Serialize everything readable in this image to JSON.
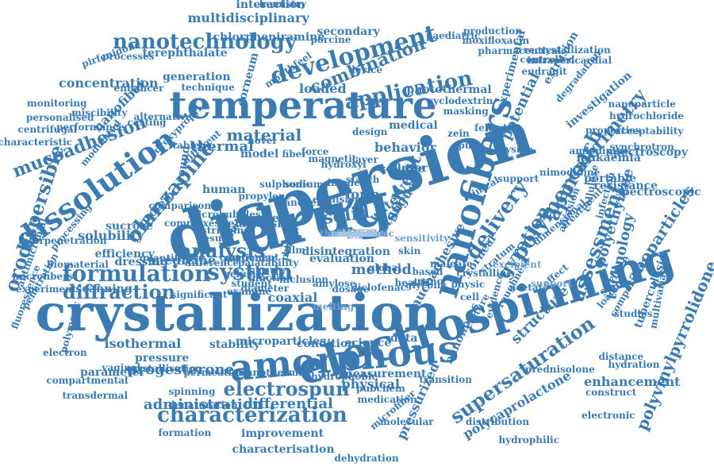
{
  "colors": {
    "primary": "#3b7bb4",
    "light": "#6f9fcc",
    "pale": "#a9c6e2"
  },
  "words": [
    {
      "text": "crystallization",
      "c": "primary"
    },
    {
      "text": "dispersion",
      "c": "primary"
    },
    {
      "text": "drug",
      "c": "primary"
    },
    {
      "text": "electrospinning",
      "c": "primary"
    },
    {
      "text": "nanofibers",
      "c": "primary"
    },
    {
      "text": "temperature",
      "c": "primary"
    },
    {
      "text": "amorphous",
      "c": "primary"
    },
    {
      "text": "dissolution",
      "c": "primary"
    },
    {
      "text": "system",
      "c": "primary"
    },
    {
      "text": "development",
      "c": "primary"
    },
    {
      "text": "formulation",
      "c": "primary"
    },
    {
      "text": "characterization",
      "c": "primary"
    },
    {
      "text": "nanotechnology",
      "c": "primary"
    },
    {
      "text": "application",
      "c": "primary"
    },
    {
      "text": "delivery",
      "c": "primary"
    },
    {
      "text": "polymer",
      "c": "primary"
    },
    {
      "text": "polyvinylpyrrolidone",
      "c": "primary"
    },
    {
      "text": "approach",
      "c": "primary"
    },
    {
      "text": "assessment",
      "c": "primary"
    },
    {
      "text": "olanzapine",
      "c": "primary"
    },
    {
      "text": "mucoadhesion",
      "c": "primary"
    },
    {
      "text": "orodispersible",
      "c": "primary"
    },
    {
      "text": "analysis",
      "c": "primary"
    },
    {
      "text": "electrospun",
      "c": "primary"
    },
    {
      "text": "supersaturation",
      "c": "primary"
    },
    {
      "text": "combination",
      "c": "primary"
    },
    {
      "text": "gyration",
      "c": "primary"
    },
    {
      "text": "calorimetry",
      "c": "primary"
    },
    {
      "text": "nanoparticles",
      "c": "primary"
    },
    {
      "text": "material",
      "c": "primary"
    },
    {
      "text": "solid",
      "c": "primary"
    },
    {
      "text": "solvent",
      "c": "primary"
    },
    {
      "text": "diffraction",
      "c": "primary"
    },
    {
      "text": "medicine",
      "c": "primary"
    },
    {
      "text": "study",
      "c": "primary"
    },
    {
      "text": "multidisciplinary",
      "c": "primary"
    },
    {
      "text": "administration",
      "c": "primary"
    },
    {
      "text": "differential",
      "c": "primary"
    },
    {
      "text": "progesterone",
      "c": "primary"
    },
    {
      "text": "structure",
      "c": "primary"
    },
    {
      "text": "polyethylene",
      "c": "primary"
    },
    {
      "text": "technology",
      "c": "primary"
    },
    {
      "text": "tuberculosis",
      "c": "primary"
    },
    {
      "text": "concentration",
      "c": "primary"
    },
    {
      "text": "generation",
      "c": "primary"
    },
    {
      "text": "corneum",
      "c": "primary"
    },
    {
      "text": "loaded",
      "c": "primary"
    },
    {
      "text": "thermal",
      "c": "primary"
    },
    {
      "text": "form",
      "c": "primary"
    },
    {
      "text": "solubility",
      "c": "primary"
    },
    {
      "text": "method",
      "c": "primary"
    },
    {
      "text": "coaxial",
      "c": "primary"
    },
    {
      "text": "isothermal",
      "c": "primary"
    },
    {
      "text": "science",
      "c": "primary"
    },
    {
      "text": "physical",
      "c": "primary"
    },
    {
      "text": "improvement",
      "c": "primary"
    },
    {
      "text": "characterisation",
      "c": "primary"
    },
    {
      "text": "pressurized",
      "c": "primary"
    },
    {
      "text": "polycaprolactone",
      "c": "primary"
    },
    {
      "text": "enhancement",
      "c": "primary"
    },
    {
      "text": "leukaemia",
      "c": "primary"
    },
    {
      "text": "portable",
      "c": "primary"
    },
    {
      "text": "resistance",
      "c": "primary"
    },
    {
      "text": "spectroscopic",
      "c": "primary"
    },
    {
      "text": "spectroscopy",
      "c": "primary"
    },
    {
      "text": "properties",
      "c": "primary"
    },
    {
      "text": "investigation",
      "c": "primary"
    },
    {
      "text": "potential",
      "c": "primary"
    },
    {
      "text": "experimental",
      "c": "primary"
    },
    {
      "text": "extrusion",
      "c": "primary"
    },
    {
      "text": "eudragit",
      "c": "primary"
    },
    {
      "text": "controlled",
      "c": "primary"
    },
    {
      "text": "moxifloxacin",
      "c": "primary"
    },
    {
      "text": "paediatric",
      "c": "primary"
    },
    {
      "text": "pharmaceutical",
      "c": "primary"
    },
    {
      "text": "secondary",
      "c": "primary"
    },
    {
      "text": "interaction",
      "c": "primary"
    },
    {
      "text": "chlorpheniramine",
      "c": "primary"
    },
    {
      "text": "terephthalate",
      "c": "primary"
    },
    {
      "text": "technique",
      "c": "primary"
    },
    {
      "text": "monitoring",
      "c": "primary"
    },
    {
      "text": "nanofiber",
      "c": "primary"
    },
    {
      "text": "personalised",
      "c": "primary"
    },
    {
      "text": "centrifugal",
      "c": "primary"
    },
    {
      "text": "characteristic",
      "c": "primary"
    },
    {
      "text": "photothermal",
      "c": "primary"
    },
    {
      "text": "cyclodextrin",
      "c": "primary"
    },
    {
      "text": "masking",
      "c": "primary"
    },
    {
      "text": "medical",
      "c": "primary"
    },
    {
      "text": "behavior",
      "c": "primary"
    },
    {
      "text": "soluble",
      "c": "primary"
    },
    {
      "text": "tongue",
      "c": "primary"
    },
    {
      "text": "water",
      "c": "primary"
    },
    {
      "text": "laser",
      "c": "primary"
    },
    {
      "text": "fiber",
      "c": "primary"
    },
    {
      "text": "model",
      "c": "primary"
    },
    {
      "text": "novel",
      "c": "primary"
    },
    {
      "text": "wound",
      "c": "primary"
    },
    {
      "text": "human",
      "c": "primary"
    },
    {
      "text": "protein",
      "c": "primary"
    },
    {
      "text": "sucrose",
      "c": "primary"
    },
    {
      "text": "efficiency",
      "c": "primary"
    },
    {
      "text": "dressing",
      "c": "primary"
    },
    {
      "text": "scanning",
      "c": "primary"
    },
    {
      "text": "significant",
      "c": "primary"
    },
    {
      "text": "penetration",
      "c": "primary"
    },
    {
      "text": "stability",
      "c": "primary"
    },
    {
      "text": "microparticles",
      "c": "primary"
    },
    {
      "text": "condition",
      "c": "primary"
    },
    {
      "text": "pressure",
      "c": "primary"
    },
    {
      "text": "vaginal",
      "c": "primary"
    },
    {
      "text": "parameter",
      "c": "primary"
    },
    {
      "text": "crystallisation",
      "c": "primary"
    },
    {
      "text": "transdermal",
      "c": "primary"
    },
    {
      "text": "spinning",
      "c": "primary"
    },
    {
      "text": "measurement",
      "c": "primary"
    },
    {
      "text": "pubchem",
      "c": "primary"
    },
    {
      "text": "transition",
      "c": "primary"
    },
    {
      "text": "molecular",
      "c": "primary"
    },
    {
      "text": "microfiber",
      "c": "primary"
    },
    {
      "text": "mucoadhesive",
      "c": "primary"
    },
    {
      "text": "nanofibres",
      "c": "primary"
    },
    {
      "text": "corneal",
      "c": "primary"
    },
    {
      "text": "stratum",
      "c": "primary"
    },
    {
      "text": "surface",
      "c": "primary"
    },
    {
      "text": "effect",
      "c": "primary"
    },
    {
      "text": "treatment",
      "c": "primary"
    },
    {
      "text": "dimensional",
      "c": "primary"
    },
    {
      "text": "abrasion",
      "c": "primary"
    },
    {
      "text": "cellulose",
      "c": "primary"
    },
    {
      "text": "loading",
      "c": "primary"
    },
    {
      "text": "studies",
      "c": "primary"
    },
    {
      "text": "hydration",
      "c": "primary"
    },
    {
      "text": "multivariate",
      "c": "primary"
    },
    {
      "text": "prednisolone",
      "c": "primary"
    },
    {
      "text": "relationship",
      "c": "primary"
    },
    {
      "text": "evaluation",
      "c": "primary"
    },
    {
      "text": "disintegration",
      "c": "primary"
    },
    {
      "text": "melt",
      "c": "primary"
    },
    {
      "text": "film",
      "c": "primary"
    },
    {
      "text": "skin",
      "c": "primary"
    },
    {
      "text": "nano",
      "c": "primary"
    },
    {
      "text": "data",
      "c": "primary"
    },
    {
      "text": "result",
      "c": "primary"
    },
    {
      "text": "atomic",
      "c": "primary"
    },
    {
      "text": "diameter",
      "c": "primary"
    },
    {
      "text": "function",
      "c": "primary"
    },
    {
      "text": "tablet",
      "c": "primary"
    },
    {
      "text": "device",
      "c": "primary"
    },
    {
      "text": "force",
      "c": "primary"
    },
    {
      "text": "droxypropyl",
      "c": "primary"
    },
    {
      "text": "different",
      "c": "primary"
    },
    {
      "text": "casting",
      "c": "primary"
    },
    {
      "text": "chemistry",
      "c": "primary"
    },
    {
      "text": "porcine",
      "c": "primary"
    },
    {
      "text": "mouthfeel",
      "c": "primary"
    },
    {
      "text": "pirfenidone",
      "c": "primary"
    },
    {
      "text": "processes",
      "c": "primary"
    },
    {
      "text": "production",
      "c": "primary"
    },
    {
      "text": "recrystallization",
      "c": "primary"
    },
    {
      "text": "intrapericardial",
      "c": "primary"
    },
    {
      "text": "nanoparticle",
      "c": "primary"
    },
    {
      "text": "degradation",
      "c": "primary"
    },
    {
      "text": "acceptability",
      "c": "primary"
    },
    {
      "text": "hydrochloride",
      "c": "primary"
    },
    {
      "text": "synchrotron",
      "c": "primary"
    },
    {
      "text": "amlodipine",
      "c": "primary"
    },
    {
      "text": "nimodipine",
      "c": "primary"
    },
    {
      "text": "composition",
      "c": "primary"
    },
    {
      "text": "infection",
      "c": "primary"
    },
    {
      "text": "distance",
      "c": "primary"
    },
    {
      "text": "construct",
      "c": "primary"
    },
    {
      "text": "electronic",
      "c": "primary"
    },
    {
      "text": "distribution",
      "c": "primary"
    },
    {
      "text": "hydrophilic",
      "c": "primary"
    },
    {
      "text": "dehydration",
      "c": "primary"
    },
    {
      "text": "medication",
      "c": "primary"
    },
    {
      "text": "hydrophobic",
      "c": "primary"
    },
    {
      "text": "denaturation",
      "c": "primary"
    },
    {
      "text": "formation",
      "c": "primary"
    },
    {
      "text": "permeation",
      "c": "primary"
    },
    {
      "text": "nanothermal",
      "c": "primary"
    },
    {
      "text": "compartmental",
      "c": "primary"
    },
    {
      "text": "electron",
      "c": "primary"
    },
    {
      "text": "polymeric",
      "c": "primary"
    },
    {
      "text": "fluorescence",
      "c": "primary"
    },
    {
      "text": "experiment",
      "c": "primary"
    },
    {
      "text": "antimicrobial",
      "c": "primary"
    },
    {
      "text": "processing",
      "c": "primary"
    },
    {
      "text": "interpenetration",
      "c": "primary"
    },
    {
      "text": "microfibers",
      "c": "primary"
    },
    {
      "text": "modulated",
      "c": "primary"
    },
    {
      "text": "performance",
      "c": "primary"
    },
    {
      "text": "miscibility",
      "c": "primary"
    },
    {
      "text": "enhancer",
      "c": "primary"
    },
    {
      "text": "alternative",
      "c": "primary"
    },
    {
      "text": "biomaterial",
      "c": "primary"
    },
    {
      "text": "quantitative",
      "c": "primary"
    },
    {
      "text": "difference",
      "c": "primary"
    },
    {
      "text": "component",
      "c": "primary"
    },
    {
      "text": "stripping",
      "c": "primary"
    },
    {
      "text": "palatability",
      "c": "primary"
    },
    {
      "text": "particular",
      "c": "primary"
    },
    {
      "text": "inclusion",
      "c": "primary"
    },
    {
      "text": "amylose",
      "c": "primary"
    },
    {
      "text": "dosage",
      "c": "primary"
    },
    {
      "text": "diclofenac",
      "c": "primary"
    },
    {
      "text": "health",
      "c": "primary"
    },
    {
      "text": "global",
      "c": "primary"
    },
    {
      "text": "based",
      "c": "primary"
    },
    {
      "text": "maleate",
      "c": "primary"
    },
    {
      "text": "glycolic",
      "c": "primary"
    },
    {
      "text": "physic",
      "c": "primary"
    },
    {
      "text": "cell",
      "c": "primary"
    },
    {
      "text": "culture",
      "c": "primary"
    },
    {
      "text": "evidence",
      "c": "primary"
    },
    {
      "text": "roughness",
      "c": "primary"
    },
    {
      "text": "crystalline",
      "c": "primary"
    },
    {
      "text": "acetate",
      "c": "primary"
    },
    {
      "text": "clinical",
      "c": "primary"
    },
    {
      "text": "sodium",
      "c": "primary"
    },
    {
      "text": "nanogels",
      "c": "primary"
    },
    {
      "text": "magnetic",
      "c": "primary"
    },
    {
      "text": "emulsion",
      "c": "primary"
    },
    {
      "text": "imode",
      "c": "primary"
    },
    {
      "text": "starch",
      "c": "primary"
    },
    {
      "text": "design",
      "c": "primary"
    },
    {
      "text": "layer",
      "c": "primary"
    },
    {
      "text": "panel",
      "c": "primary"
    },
    {
      "text": "kinetic",
      "c": "primary"
    },
    {
      "text": "examine",
      "c": "primary"
    },
    {
      "text": "student",
      "c": "primary"
    },
    {
      "text": "gelucire",
      "c": "primary"
    },
    {
      "text": "propylene",
      "c": "primary"
    },
    {
      "text": "complexes",
      "c": "primary"
    },
    {
      "text": "comparison",
      "c": "primary"
    },
    {
      "text": "microbubbles",
      "c": "primary"
    },
    {
      "text": "sulphonic",
      "c": "primary"
    },
    {
      "text": "hydroxyl",
      "c": "primary"
    },
    {
      "text": "pure",
      "c": "primary"
    },
    {
      "text": "zein",
      "c": "primary"
    },
    {
      "text": "feline",
      "c": "primary"
    },
    {
      "text": "lysine",
      "c": "primary"
    },
    {
      "text": "support",
      "c": "primary"
    },
    {
      "text": "support",
      "c": "light"
    },
    {
      "text": "excipient",
      "c": "light"
    },
    {
      "text": "melting",
      "c": "light"
    },
    {
      "text": "sensitivity",
      "c": "light"
    },
    {
      "text": "hanson",
      "c": "light"
    },
    {
      "text": "ethanol",
      "c": "light"
    },
    {
      "text": "anhydrous",
      "c": "light"
    },
    {
      "text": "carrier",
      "c": "light"
    },
    {
      "text": "solution",
      "c": "light"
    },
    {
      "text": "thermoplastic",
      "c": "light"
    },
    {
      "text": "thickness",
      "c": "light"
    },
    {
      "text": "mechanism",
      "c": "light"
    },
    {
      "text": "ionic",
      "c": "light"
    },
    {
      "text": "capacity",
      "c": "light"
    },
    {
      "text": "tensile",
      "c": "light"
    },
    {
      "text": "uniform",
      "c": "light"
    },
    {
      "text": "metabolic",
      "c": "pale"
    },
    {
      "text": "sample",
      "c": "pale"
    },
    {
      "text": "enzyme",
      "c": "pale"
    },
    {
      "text": "ratio",
      "c": "pale"
    },
    {
      "text": "visual",
      "c": "pale"
    },
    {
      "text": "crystal",
      "c": "pale"
    },
    {
      "text": "batch",
      "c": "pale"
    },
    {
      "text": "agent",
      "c": "pale"
    },
    {
      "text": "rapid",
      "c": "pale"
    }
  ]
}
